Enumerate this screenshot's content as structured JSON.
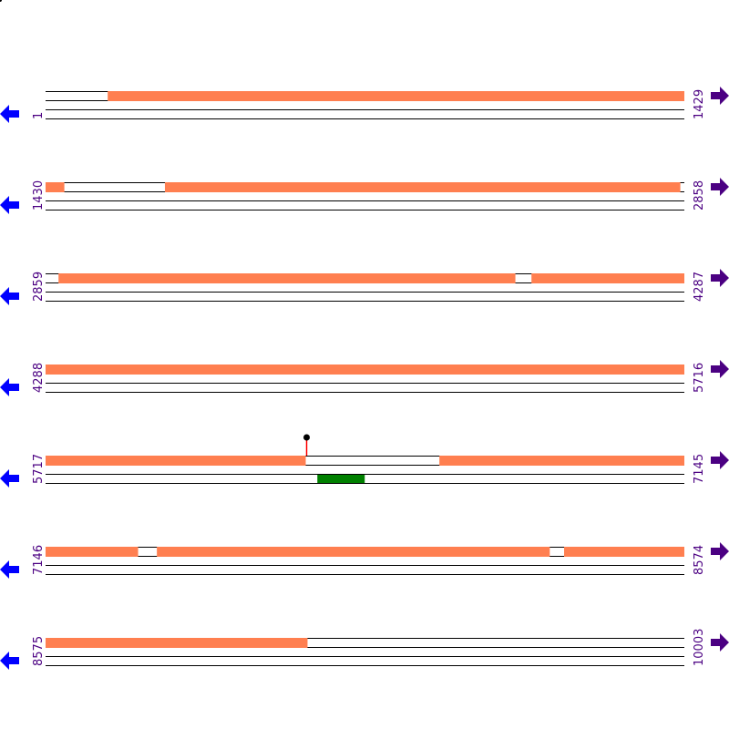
{
  "colors": {
    "feature": "#ff7f50",
    "marker": "#008000",
    "label": "#4b0082",
    "left_arrow": "#0000ff",
    "right_arrow": "#4b0082",
    "lollipop_stem": "#ff0000",
    "lollipop_head": "#000000"
  },
  "icons": {
    "left": "arrow-left-icon",
    "right": "arrow-right-icon"
  },
  "rows": [
    {
      "start": 1,
      "end": 1429,
      "start_label": "1",
      "end_label": "1429",
      "features": [
        [
          140,
          1429
        ]
      ]
    },
    {
      "start": 1430,
      "end": 2858,
      "start_label": "1430",
      "end_label": "2858",
      "features": [
        [
          1430,
          1471
        ],
        [
          1697,
          2849
        ]
      ]
    },
    {
      "start": 2859,
      "end": 4287,
      "start_label": "2859",
      "end_label": "4287",
      "features": [
        [
          2888,
          3909
        ],
        [
          3946,
          4287
        ]
      ]
    },
    {
      "start": 4288,
      "end": 5716,
      "start_label": "4288",
      "end_label": "5716",
      "features": [
        [
          4288,
          5716
        ]
      ]
    },
    {
      "start": 5717,
      "end": 7145,
      "start_label": "5717",
      "end_label": "7145",
      "features": [
        [
          5717,
          6298
        ],
        [
          6598,
          7145
        ]
      ],
      "markers": [
        [
          6325,
          6431
        ]
      ],
      "lollipops": [
        6300
      ]
    },
    {
      "start": 7146,
      "end": 8574,
      "start_label": "7146",
      "end_label": "8574",
      "features": [
        [
          7146,
          7352
        ],
        [
          7395,
          8273
        ],
        [
          8306,
          8574
        ]
      ]
    },
    {
      "start": 8575,
      "end": 10003,
      "start_label": "8575",
      "end_label": "10003",
      "features": [
        [
          8575,
          9160
        ]
      ]
    }
  ]
}
